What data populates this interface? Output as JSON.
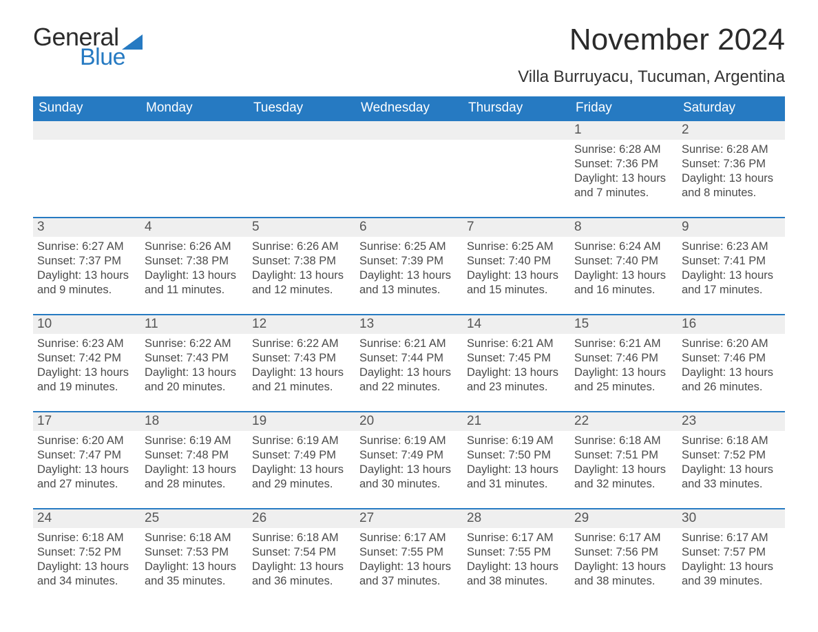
{
  "brand": {
    "part1": "General",
    "part2": "Blue"
  },
  "header": {
    "month_title": "November 2024",
    "location": "Villa Burruyacu, Tucuman, Argentina"
  },
  "colors": {
    "brand_blue": "#267ac2",
    "header_row_bg": "#267ac2",
    "daynum_bg": "#efefef",
    "rule_blue": "#267ac2",
    "page_bg": "#ffffff",
    "text_dark": "#333333"
  },
  "weekdays": [
    "Sunday",
    "Monday",
    "Tuesday",
    "Wednesday",
    "Thursday",
    "Friday",
    "Saturday"
  ],
  "weeks": [
    [
      null,
      null,
      null,
      null,
      null,
      {
        "n": "1",
        "sunrise": "Sunrise: 6:28 AM",
        "sunset": "Sunset: 7:36 PM",
        "daylight": "Daylight: 13 hours and 7 minutes."
      },
      {
        "n": "2",
        "sunrise": "Sunrise: 6:28 AM",
        "sunset": "Sunset: 7:36 PM",
        "daylight": "Daylight: 13 hours and 8 minutes."
      }
    ],
    [
      {
        "n": "3",
        "sunrise": "Sunrise: 6:27 AM",
        "sunset": "Sunset: 7:37 PM",
        "daylight": "Daylight: 13 hours and 9 minutes."
      },
      {
        "n": "4",
        "sunrise": "Sunrise: 6:26 AM",
        "sunset": "Sunset: 7:38 PM",
        "daylight": "Daylight: 13 hours and 11 minutes."
      },
      {
        "n": "5",
        "sunrise": "Sunrise: 6:26 AM",
        "sunset": "Sunset: 7:38 PM",
        "daylight": "Daylight: 13 hours and 12 minutes."
      },
      {
        "n": "6",
        "sunrise": "Sunrise: 6:25 AM",
        "sunset": "Sunset: 7:39 PM",
        "daylight": "Daylight: 13 hours and 13 minutes."
      },
      {
        "n": "7",
        "sunrise": "Sunrise: 6:25 AM",
        "sunset": "Sunset: 7:40 PM",
        "daylight": "Daylight: 13 hours and 15 minutes."
      },
      {
        "n": "8",
        "sunrise": "Sunrise: 6:24 AM",
        "sunset": "Sunset: 7:40 PM",
        "daylight": "Daylight: 13 hours and 16 minutes."
      },
      {
        "n": "9",
        "sunrise": "Sunrise: 6:23 AM",
        "sunset": "Sunset: 7:41 PM",
        "daylight": "Daylight: 13 hours and 17 minutes."
      }
    ],
    [
      {
        "n": "10",
        "sunrise": "Sunrise: 6:23 AM",
        "sunset": "Sunset: 7:42 PM",
        "daylight": "Daylight: 13 hours and 19 minutes."
      },
      {
        "n": "11",
        "sunrise": "Sunrise: 6:22 AM",
        "sunset": "Sunset: 7:43 PM",
        "daylight": "Daylight: 13 hours and 20 minutes."
      },
      {
        "n": "12",
        "sunrise": "Sunrise: 6:22 AM",
        "sunset": "Sunset: 7:43 PM",
        "daylight": "Daylight: 13 hours and 21 minutes."
      },
      {
        "n": "13",
        "sunrise": "Sunrise: 6:21 AM",
        "sunset": "Sunset: 7:44 PM",
        "daylight": "Daylight: 13 hours and 22 minutes."
      },
      {
        "n": "14",
        "sunrise": "Sunrise: 6:21 AM",
        "sunset": "Sunset: 7:45 PM",
        "daylight": "Daylight: 13 hours and 23 minutes."
      },
      {
        "n": "15",
        "sunrise": "Sunrise: 6:21 AM",
        "sunset": "Sunset: 7:46 PM",
        "daylight": "Daylight: 13 hours and 25 minutes."
      },
      {
        "n": "16",
        "sunrise": "Sunrise: 6:20 AM",
        "sunset": "Sunset: 7:46 PM",
        "daylight": "Daylight: 13 hours and 26 minutes."
      }
    ],
    [
      {
        "n": "17",
        "sunrise": "Sunrise: 6:20 AM",
        "sunset": "Sunset: 7:47 PM",
        "daylight": "Daylight: 13 hours and 27 minutes."
      },
      {
        "n": "18",
        "sunrise": "Sunrise: 6:19 AM",
        "sunset": "Sunset: 7:48 PM",
        "daylight": "Daylight: 13 hours and 28 minutes."
      },
      {
        "n": "19",
        "sunrise": "Sunrise: 6:19 AM",
        "sunset": "Sunset: 7:49 PM",
        "daylight": "Daylight: 13 hours and 29 minutes."
      },
      {
        "n": "20",
        "sunrise": "Sunrise: 6:19 AM",
        "sunset": "Sunset: 7:49 PM",
        "daylight": "Daylight: 13 hours and 30 minutes."
      },
      {
        "n": "21",
        "sunrise": "Sunrise: 6:19 AM",
        "sunset": "Sunset: 7:50 PM",
        "daylight": "Daylight: 13 hours and 31 minutes."
      },
      {
        "n": "22",
        "sunrise": "Sunrise: 6:18 AM",
        "sunset": "Sunset: 7:51 PM",
        "daylight": "Daylight: 13 hours and 32 minutes."
      },
      {
        "n": "23",
        "sunrise": "Sunrise: 6:18 AM",
        "sunset": "Sunset: 7:52 PM",
        "daylight": "Daylight: 13 hours and 33 minutes."
      }
    ],
    [
      {
        "n": "24",
        "sunrise": "Sunrise: 6:18 AM",
        "sunset": "Sunset: 7:52 PM",
        "daylight": "Daylight: 13 hours and 34 minutes."
      },
      {
        "n": "25",
        "sunrise": "Sunrise: 6:18 AM",
        "sunset": "Sunset: 7:53 PM",
        "daylight": "Daylight: 13 hours and 35 minutes."
      },
      {
        "n": "26",
        "sunrise": "Sunrise: 6:18 AM",
        "sunset": "Sunset: 7:54 PM",
        "daylight": "Daylight: 13 hours and 36 minutes."
      },
      {
        "n": "27",
        "sunrise": "Sunrise: 6:17 AM",
        "sunset": "Sunset: 7:55 PM",
        "daylight": "Daylight: 13 hours and 37 minutes."
      },
      {
        "n": "28",
        "sunrise": "Sunrise: 6:17 AM",
        "sunset": "Sunset: 7:55 PM",
        "daylight": "Daylight: 13 hours and 38 minutes."
      },
      {
        "n": "29",
        "sunrise": "Sunrise: 6:17 AM",
        "sunset": "Sunset: 7:56 PM",
        "daylight": "Daylight: 13 hours and 38 minutes."
      },
      {
        "n": "30",
        "sunrise": "Sunrise: 6:17 AM",
        "sunset": "Sunset: 7:57 PM",
        "daylight": "Daylight: 13 hours and 39 minutes."
      }
    ]
  ]
}
